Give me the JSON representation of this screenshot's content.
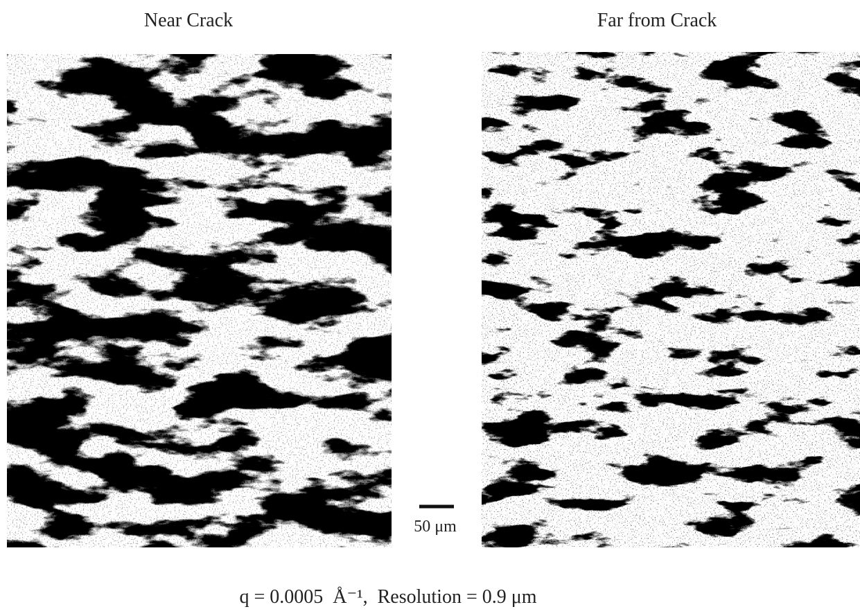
{
  "panels": [
    {
      "title": "Near Crack"
    },
    {
      "title": "Far from Crack"
    }
  ],
  "scale_bar": {
    "label": "50 μm"
  },
  "caption": "q = 0.0005  Å⁻¹,  Resolution = 0.9 μm"
}
